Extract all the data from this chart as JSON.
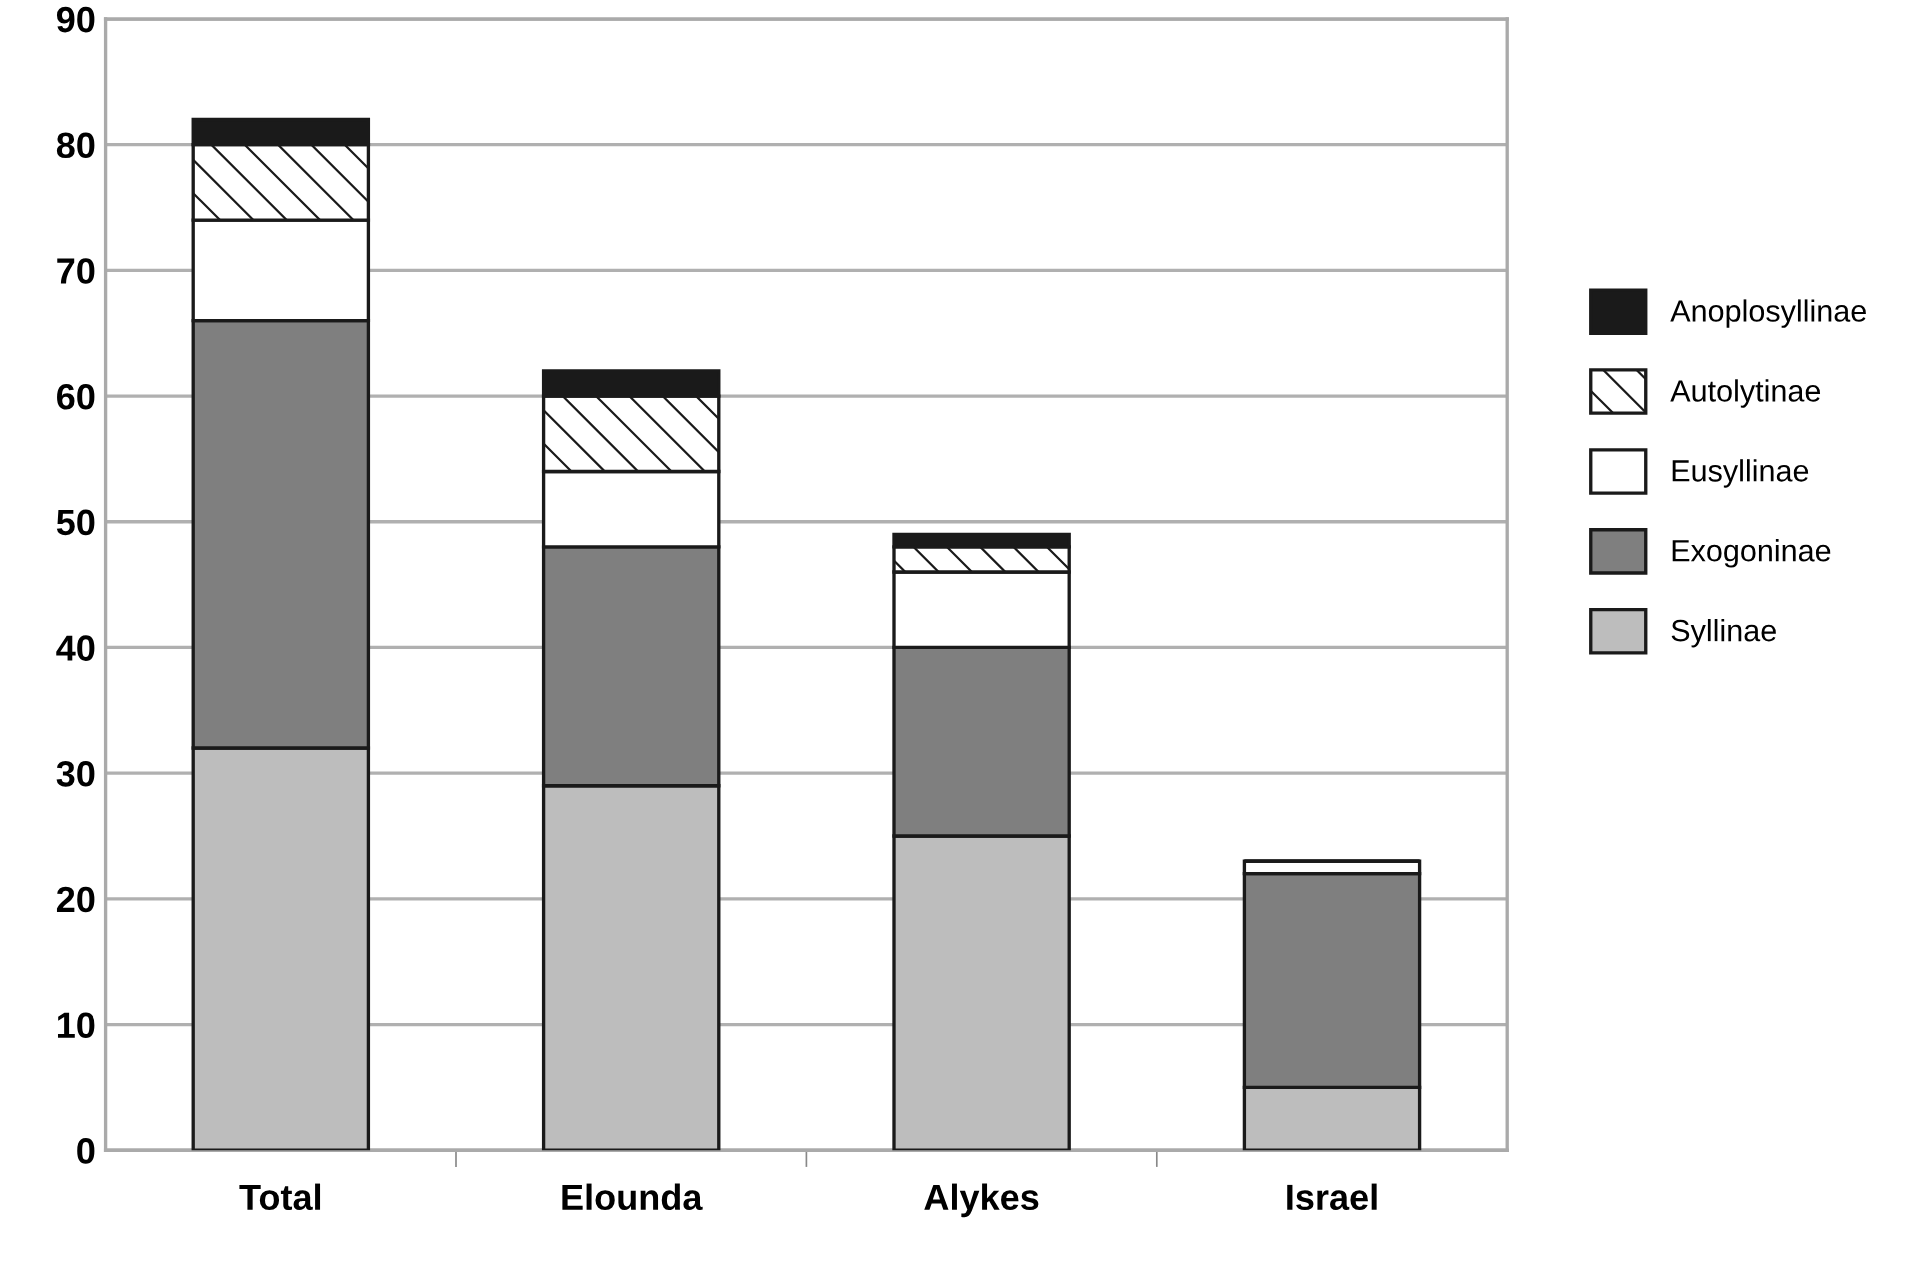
{
  "chart_data": {
    "type": "bar",
    "stacked": true,
    "categories": [
      "Total",
      "Elounda",
      "Alykes",
      "Israel"
    ],
    "series": [
      {
        "name": "Syllinae",
        "color": "#bdbdbd",
        "values": [
          32,
          29,
          25,
          5
        ]
      },
      {
        "name": "Exogoninae",
        "color": "#7f7f7f",
        "values": [
          34,
          19,
          15,
          17
        ]
      },
      {
        "name": "Eusyllinae",
        "color": "#ffffff",
        "values": [
          8,
          6,
          6,
          1
        ]
      },
      {
        "name": "Autolytinae",
        "color": "#ffffff",
        "values": [
          6,
          6,
          2,
          0
        ]
      },
      {
        "name": "Anoplosyllinae",
        "color": "#1a1a1a",
        "values": [
          2,
          2,
          1,
          0
        ]
      }
    ],
    "ylim": [
      0,
      90
    ],
    "yticks": [
      0,
      10,
      20,
      30,
      40,
      50,
      60,
      70,
      80,
      90
    ],
    "grid": "y",
    "legend": "right"
  }
}
